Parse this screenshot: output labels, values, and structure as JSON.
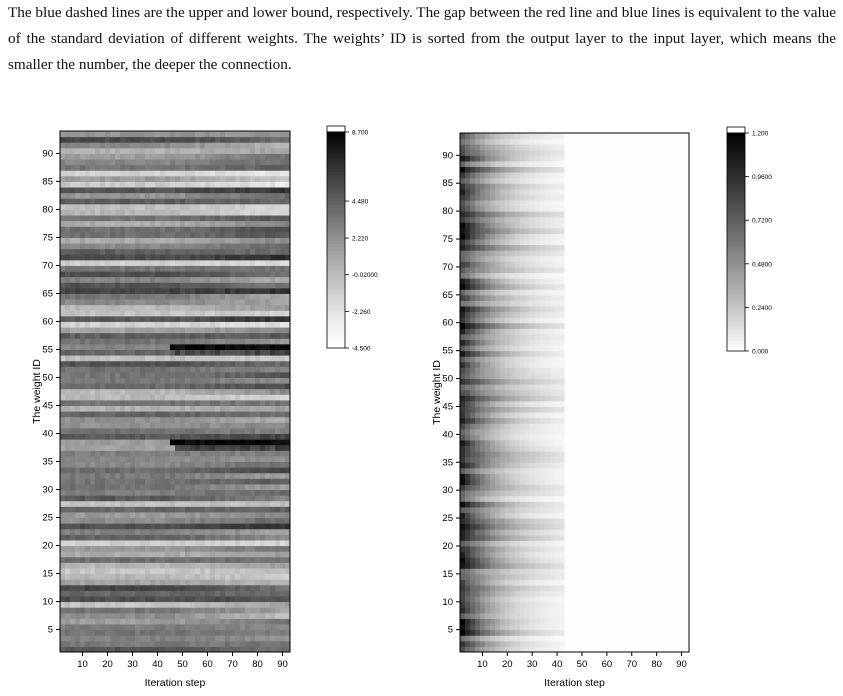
{
  "caption": "The blue dashed lines are the upper and lower bound, respectively. The gap between the red line and blue lines is equivalent to the value of the standard deviation of different weights. The weights’ ID is sorted from the output layer to the input layer, which means the smaller the number, the deeper the connection.",
  "colors": {
    "low": "#ffffff",
    "high": "#000000",
    "frame": "#000000"
  },
  "chart_data": [
    {
      "type": "heatmap",
      "xlabel": "Iteration step",
      "ylabel": "The weight ID",
      "xlim": [
        1,
        93
      ],
      "ylim": [
        1,
        94
      ],
      "x_ticks": [
        10,
        20,
        30,
        40,
        50,
        60,
        70,
        80,
        90
      ],
      "y_ticks": [
        5,
        10,
        15,
        20,
        25,
        30,
        35,
        40,
        45,
        50,
        55,
        60,
        65,
        70,
        75,
        80,
        85,
        90
      ],
      "colorbar": {
        "range": [
          -4.5,
          8.7
        ],
        "ticks": [
          {
            "value": 8.7,
            "label": "8.700"
          },
          {
            "value": 4.48,
            "label": "4.480"
          },
          {
            "value": 2.22,
            "label": "2.220"
          },
          {
            "value": -0.02,
            "label": "-0.02000"
          },
          {
            "value": -2.26,
            "label": "-2.260"
          },
          {
            "value": -4.5,
            "label": "-4.500"
          }
        ]
      },
      "value_range": [
        -4.5,
        8.7
      ],
      "peak_rows": [
        {
          "weight_id": 38,
          "value": 8.7
        },
        {
          "weight_id": 55,
          "value": 8.7
        }
      ]
    },
    {
      "type": "heatmap",
      "xlabel": "Iteration step",
      "ylabel": "The weight ID",
      "xlim": [
        1,
        93
      ],
      "ylim": [
        1,
        94
      ],
      "x_ticks": [
        10,
        20,
        30,
        40,
        50,
        60,
        70,
        80,
        90
      ],
      "y_ticks": [
        5,
        10,
        15,
        20,
        25,
        30,
        35,
        40,
        45,
        50,
        55,
        60,
        65,
        70,
        75,
        80,
        85,
        90
      ],
      "colorbar": {
        "range": [
          0,
          1.2
        ],
        "ticks": [
          {
            "value": 1.2,
            "label": "1.200"
          },
          {
            "value": 0.96,
            "label": "0.9600"
          },
          {
            "value": 0.72,
            "label": "0.7200"
          },
          {
            "value": 0.48,
            "label": "0.4800"
          },
          {
            "value": 0.24,
            "label": "0.2400"
          },
          {
            "value": 0.0,
            "label": "0.000"
          }
        ]
      },
      "value_range": [
        0,
        1.2
      ],
      "max_value_at_step": 1,
      "near_zero_after_step": 40
    }
  ]
}
